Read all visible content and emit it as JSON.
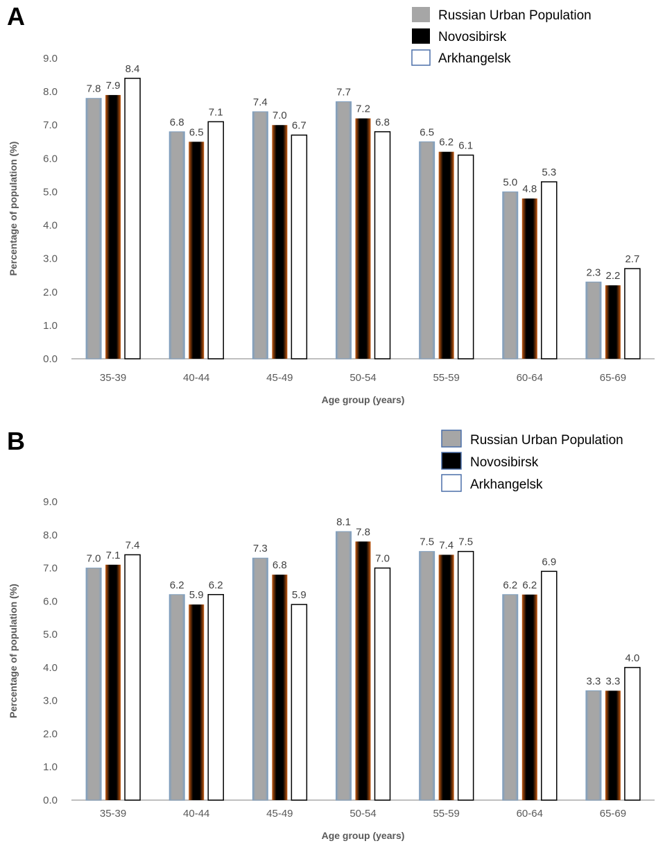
{
  "panels": [
    {
      "letter": "A",
      "chart_data": {
        "type": "bar",
        "categories": [
          "35-39",
          "40-44",
          "45-49",
          "50-54",
          "55-59",
          "60-64",
          "65-69"
        ],
        "series": [
          {
            "name": "Russian Urban Population",
            "values": [
              7.8,
              6.8,
              7.4,
              7.7,
              6.5,
              5.0,
              2.3
            ]
          },
          {
            "name": "Novosibirsk",
            "values": [
              7.9,
              6.5,
              7.0,
              7.2,
              6.2,
              4.8,
              2.2
            ]
          },
          {
            "name": "Arkhangelsk",
            "values": [
              8.4,
              7.1,
              6.7,
              6.8,
              6.1,
              5.3,
              2.7
            ]
          }
        ],
        "value_labels": [
          [
            "7.8",
            "6.8",
            "7.4",
            "7.7",
            "6.5",
            "5.0",
            "2.3"
          ],
          [
            "7.9",
            "6.5",
            "7.0",
            "7.2",
            "6.2",
            "4.8",
            "2.2"
          ],
          [
            "8.4",
            "7.1",
            "6.7",
            "6.8",
            "6.1",
            "5.3",
            "2.7"
          ]
        ],
        "yticks": [
          "0.0",
          "1.0",
          "2.0",
          "3.0",
          "4.0",
          "5.0",
          "6.0",
          "7.0",
          "8.0",
          "9.0"
        ],
        "ylim": [
          0,
          9
        ],
        "xlabel": "Age group (years)",
        "ylabel": "Percentage of population (%)",
        "legend_position": "top-right",
        "grid": false,
        "colors": {
          "series_fill": [
            "#a6a6a6",
            "#000000",
            "#ffffff"
          ],
          "series_glow": [
            "#7f9fbf",
            "#c55a11",
            "#000000"
          ],
          "axis": "#bfbfbf"
        }
      }
    },
    {
      "letter": "B",
      "chart_data": {
        "type": "bar",
        "categories": [
          "35-39",
          "40-44",
          "45-49",
          "50-54",
          "55-59",
          "60-64",
          "65-69"
        ],
        "series": [
          {
            "name": "Russian Urban Population",
            "values": [
              7.0,
              6.2,
              7.3,
              8.1,
              7.5,
              6.2,
              3.3
            ]
          },
          {
            "name": "Novosibirsk",
            "values": [
              7.1,
              5.9,
              6.8,
              7.8,
              7.4,
              6.2,
              3.3
            ]
          },
          {
            "name": "Arkhangelsk",
            "values": [
              7.4,
              6.2,
              5.9,
              7.0,
              7.5,
              6.9,
              4.0
            ]
          }
        ],
        "value_labels": [
          [
            "7.0",
            "6.2",
            "7.3",
            "8.1",
            "7.5",
            "6.2",
            "3.3"
          ],
          [
            "7.1",
            "5.9",
            "6.8",
            "7.8",
            "7.4",
            "6.2",
            "3.3"
          ],
          [
            "7.4",
            "6.2",
            "5.9",
            "7.0",
            "7.5",
            "6.9",
            "4.0"
          ]
        ],
        "yticks": [
          "0.0",
          "1.0",
          "2.0",
          "3.0",
          "4.0",
          "5.0",
          "6.0",
          "7.0",
          "8.0",
          "9.0"
        ],
        "ylim": [
          0,
          9
        ],
        "xlabel": "Age group (years)",
        "ylabel": "Percentage of population (%)",
        "legend_position": "top-right",
        "grid": false,
        "colors": {
          "series_fill": [
            "#a6a6a6",
            "#000000",
            "#ffffff"
          ],
          "series_glow": [
            "#7f9fbf",
            "#c55a11",
            "#000000"
          ],
          "axis": "#bfbfbf"
        }
      }
    }
  ]
}
